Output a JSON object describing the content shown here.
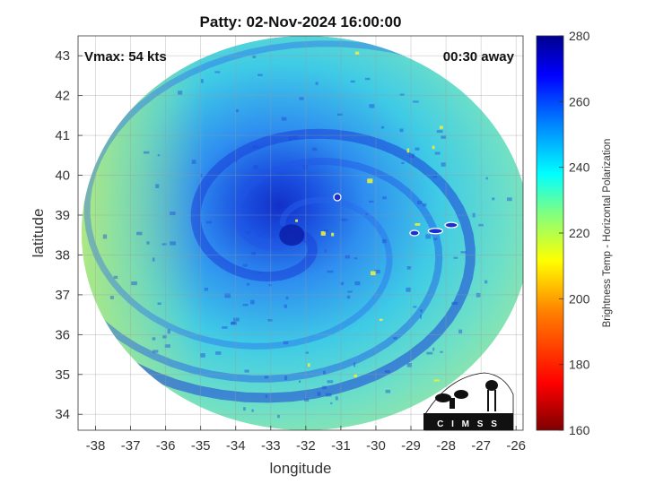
{
  "chart_data": {
    "type": "heatmap",
    "title": "Patty: 02-Nov-2024 16:00:00",
    "annotations": {
      "vmax": "Vmax: 54 kts",
      "away": "00:30 away"
    },
    "xlabel": "longitude",
    "ylabel": "latitude",
    "xlim": [
      -38.5,
      -25.8
    ],
    "ylim": [
      33.6,
      43.5
    ],
    "xticks": [
      -38,
      -37,
      -36,
      -35,
      -34,
      -33,
      -32,
      -31,
      -30,
      -29,
      -28,
      -27,
      -26
    ],
    "yticks": [
      34,
      35,
      36,
      37,
      38,
      39,
      40,
      41,
      42,
      43
    ],
    "grid": true,
    "swath": {
      "center": [
        -32.0,
        38.55
      ],
      "radius_lon": 6.4,
      "radius_lat": 4.95
    },
    "storm_center": [
      -32.4,
      38.5
    ],
    "colorbar": {
      "label": "Brightness Temp - Horizontal Polarization",
      "range": [
        160,
        280
      ],
      "ticks": [
        160,
        180,
        200,
        220,
        240,
        260,
        280
      ],
      "colormap": "jet",
      "colors": [
        "#7f0000",
        "#ff0000",
        "#ff8000",
        "#ffff00",
        "#80ff80",
        "#00ffff",
        "#0080ff",
        "#0000ff",
        "#00008f"
      ]
    },
    "logo": {
      "text": "C I M S S"
    }
  }
}
